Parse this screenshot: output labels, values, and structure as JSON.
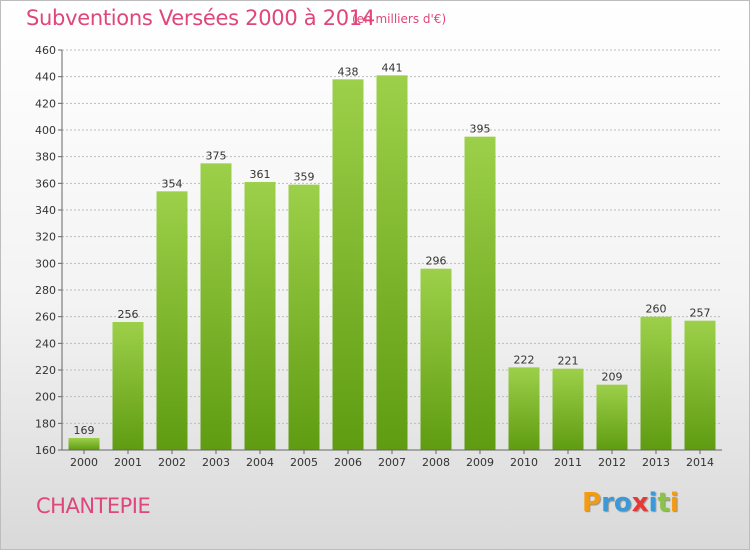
{
  "header": {
    "title": "Subventions Versées 2000 à 2014",
    "unit": "(en milliers d'€)"
  },
  "footer": {
    "commune": "CHANTEPIE",
    "logo_text": "Proxiti"
  },
  "colors": {
    "title": "#e0457b",
    "bar_light": "#9dd04a",
    "bar_dark": "#5f9c12",
    "grid": "#bcbcbc"
  },
  "chart_data": {
    "type": "bar",
    "title": "Subventions Versées 2000 à 2014",
    "subtitle": "(en milliers d'€)",
    "xlabel": "",
    "ylabel": "",
    "categories": [
      "2000",
      "2001",
      "2002",
      "2003",
      "2004",
      "2005",
      "2006",
      "2007",
      "2008",
      "2009",
      "2010",
      "2011",
      "2012",
      "2013",
      "2014"
    ],
    "values": [
      169,
      256,
      354,
      375,
      361,
      359,
      438,
      441,
      296,
      395,
      222,
      221,
      209,
      260,
      257
    ],
    "ylim": [
      160,
      460
    ],
    "yticks": [
      160,
      180,
      200,
      220,
      240,
      260,
      280,
      300,
      320,
      340,
      360,
      380,
      400,
      420,
      440,
      460
    ],
    "grid": true,
    "data_labels": true
  }
}
